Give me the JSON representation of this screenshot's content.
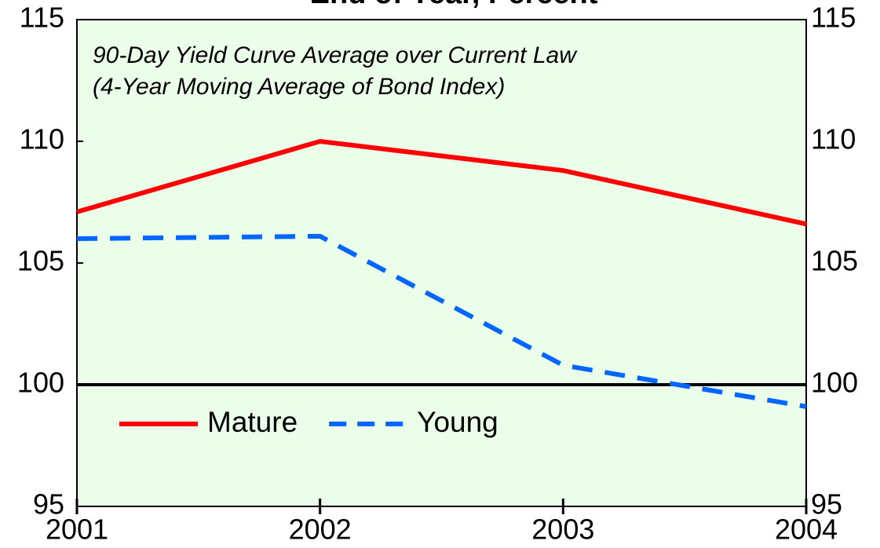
{
  "chart_data": {
    "type": "line",
    "title": "End of Year, Percent",
    "annotations": [
      "90-Day Yield Curve Average over Current Law",
      "(4-Year Moving Average of Bond Index)"
    ],
    "x": [
      2001,
      2002,
      2003,
      2004
    ],
    "series": [
      {
        "name": "Mature",
        "color": "#ff0000",
        "dash": "solid",
        "values": [
          107.1,
          110.0,
          108.8,
          106.6
        ]
      },
      {
        "name": "Young",
        "color": "#0066ff",
        "dash": "dashed",
        "values": [
          106.0,
          106.1,
          100.8,
          99.1
        ]
      }
    ],
    "xlim": [
      2001,
      2004
    ],
    "xticks": [
      2001,
      2002,
      2003,
      2004
    ],
    "ylim": [
      95,
      115
    ],
    "yticks": [
      95,
      100,
      105,
      110,
      115
    ],
    "reference_line": 100,
    "background": "#ebfeea",
    "legend": "lower left"
  }
}
